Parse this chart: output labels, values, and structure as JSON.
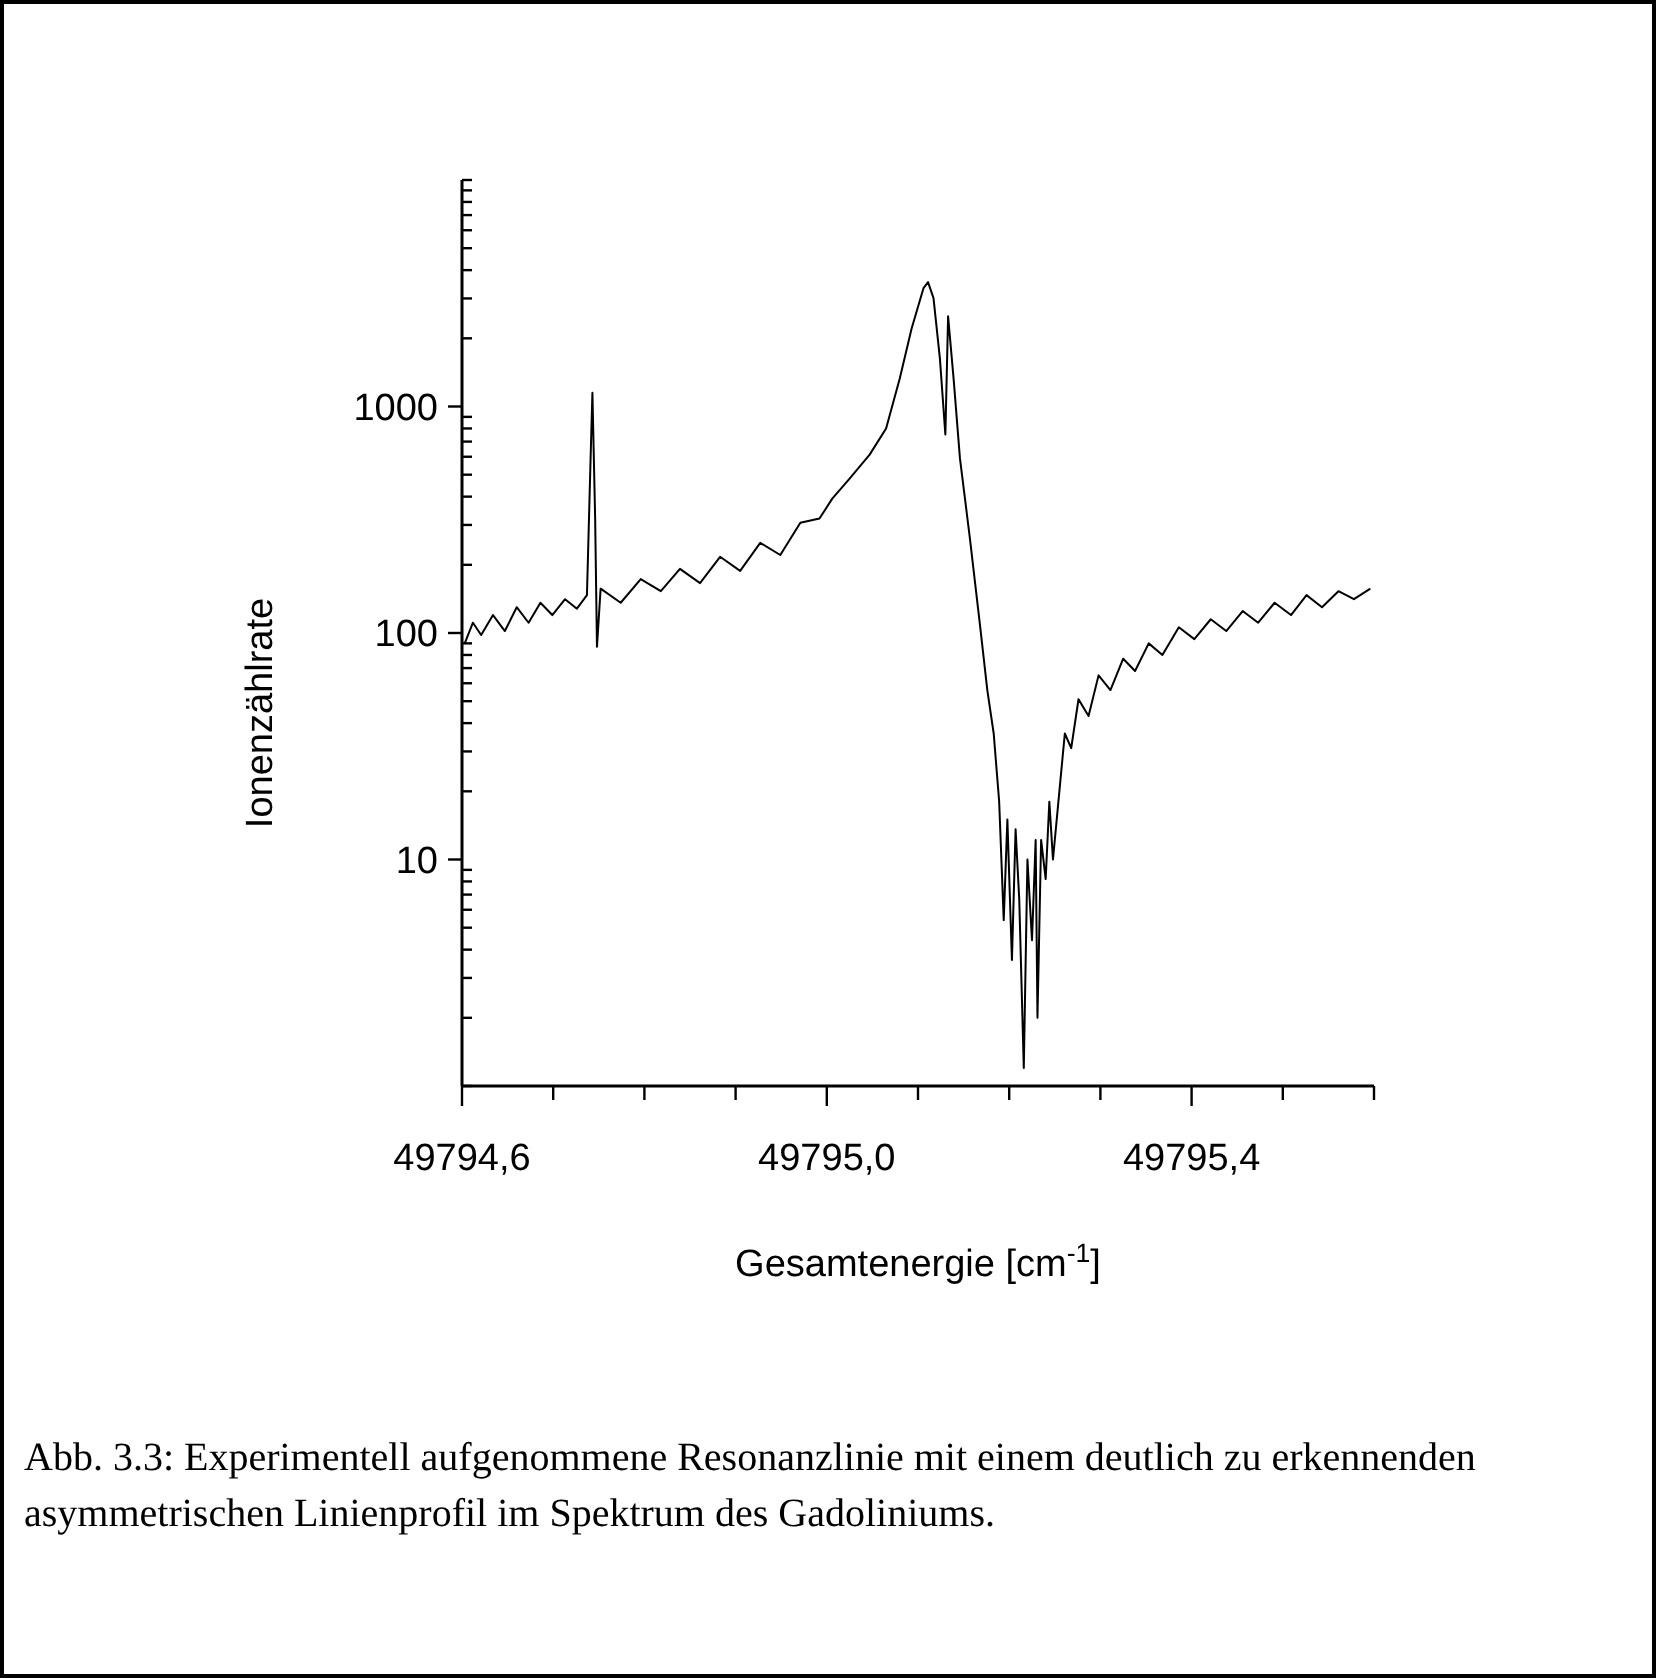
{
  "chart_data": {
    "type": "line",
    "xlabel": "Gesamtenergie [cm$^{-1}$]",
    "ylabel": "Ionenzählrate",
    "annotations": [
      "Abb. 3.3: Experimentell aufgenommene Resonanzlinie mit einem deutlich zu erkennenden asymmetrischen Linienprofil im Spektrum des Gadoliniums."
    ],
    "log": "y",
    "xlim": [
      49794.6,
      49795.6
    ],
    "xticks": [
      {
        "value": 49794.6,
        "label": "49794,6"
      },
      {
        "value": 49794.7,
        "label": null
      },
      {
        "value": 49794.8,
        "label": null
      },
      {
        "value": 49794.9,
        "label": null
      },
      {
        "value": 49795.0,
        "label": "49795,0"
      },
      {
        "value": 49795.1,
        "label": null
      },
      {
        "value": 49795.2,
        "label": null
      },
      {
        "value": 49795.3,
        "label": null
      },
      {
        "value": 49795.4,
        "label": "49795,4"
      },
      {
        "value": 49795.5,
        "label": null
      },
      {
        "value": 49795.6,
        "label": null
      }
    ],
    "ylim": [
      1,
      10000
    ],
    "yticks": [
      {
        "value": 1,
        "label": null
      },
      {
        "value": 2,
        "label": null
      },
      {
        "value": 3,
        "label": null
      },
      {
        "value": 4,
        "label": null
      },
      {
        "value": 5,
        "label": null
      },
      {
        "value": 6,
        "label": null
      },
      {
        "value": 7,
        "label": null
      },
      {
        "value": 8,
        "label": null
      },
      {
        "value": 9,
        "label": null
      },
      10,
      {
        "value": 20,
        "label": null
      },
      {
        "value": 30,
        "label": null
      },
      {
        "value": 40,
        "label": null
      },
      {
        "value": 50,
        "label": null
      },
      {
        "value": 60,
        "label": null
      },
      {
        "value": 70,
        "label": null
      },
      {
        "value": 80,
        "label": null
      },
      {
        "value": 90,
        "label": null
      },
      100,
      {
        "value": 200,
        "label": null
      },
      {
        "value": 300,
        "label": null
      },
      {
        "value": 400,
        "label": null
      },
      {
        "value": 500,
        "label": null
      },
      {
        "value": 600,
        "label": null
      },
      {
        "value": 700,
        "label": null
      },
      {
        "value": 800,
        "label": null
      },
      {
        "value": 900,
        "label": null
      },
      1000,
      {
        "value": 2000,
        "label": null
      },
      {
        "value": 3000,
        "label": null
      },
      {
        "value": 4000,
        "label": null
      },
      {
        "value": 5000,
        "label": null
      },
      {
        "value": 6000,
        "label": null
      },
      {
        "value": 7000,
        "label": null
      },
      {
        "value": 8000,
        "label": null
      },
      {
        "value": 9000,
        "label": null
      },
      {
        "value": 10000,
        "label": null
      }
    ],
    "grid": false,
    "marker": "none",
    "line_style": "solid",
    "series": [
      {
        "color": "#000000",
        "x": [
          49794.603,
          49794.612,
          49794.621,
          49794.634,
          49794.647,
          49794.66,
          49794.673,
          49794.686,
          49794.699,
          49794.713,
          49794.726,
          49794.737,
          49794.741,
          49794.743,
          49794.746,
          49794.748,
          49794.752,
          49794.774,
          49794.796,
          49794.818,
          49794.839,
          49794.861,
          49794.883,
          49794.905,
          49794.927,
          49794.949,
          49794.971,
          49794.992,
          49795.006,
          49795.025,
          49795.047,
          49795.065,
          49795.08,
          49795.093,
          49795.106,
          49795.111,
          49795.117,
          49795.124,
          49795.13,
          49795.133,
          49795.139,
          49795.146,
          49795.157,
          49795.168,
          49795.176,
          49795.183,
          49795.189,
          49795.194,
          49795.198,
          49795.203,
          49795.207,
          49795.211,
          49795.216,
          49795.22,
          49795.225,
          49795.229,
          49795.231,
          49795.235,
          49795.24,
          49795.244,
          49795.248,
          49795.255,
          49795.261,
          49795.268,
          49795.276,
          49795.287,
          49795.298,
          49795.311,
          49795.325,
          49795.338,
          49795.353,
          49795.368,
          49795.386,
          49795.403,
          49795.421,
          49795.438,
          49795.456,
          49795.473,
          49795.491,
          49795.509,
          49795.526,
          49795.543,
          49795.561,
          49795.578,
          49795.596
        ],
        "values": [
          90,
          111,
          98,
          120,
          102,
          130,
          111,
          136,
          120,
          141,
          128,
          147,
          590,
          1150,
          320,
          87,
          157,
          136,
          173,
          153,
          192,
          166,
          217,
          188,
          250,
          221,
          307,
          320,
          392,
          480,
          613,
          800,
          1330,
          2210,
          3330,
          3540,
          3010,
          1630,
          752,
          2500,
          1330,
          590,
          260,
          108,
          56,
          36,
          18,
          5.4,
          15,
          3.6,
          13.6,
          6.7,
          1.2,
          10,
          4.4,
          12.2,
          2,
          12.2,
          8.2,
          18,
          10,
          20,
          36,
          31,
          51,
          43,
          65,
          56,
          77,
          68,
          90,
          80,
          106,
          94,
          115,
          102,
          125,
          111,
          136,
          120,
          147,
          130,
          153,
          141,
          157
        ]
      }
    ]
  }
}
